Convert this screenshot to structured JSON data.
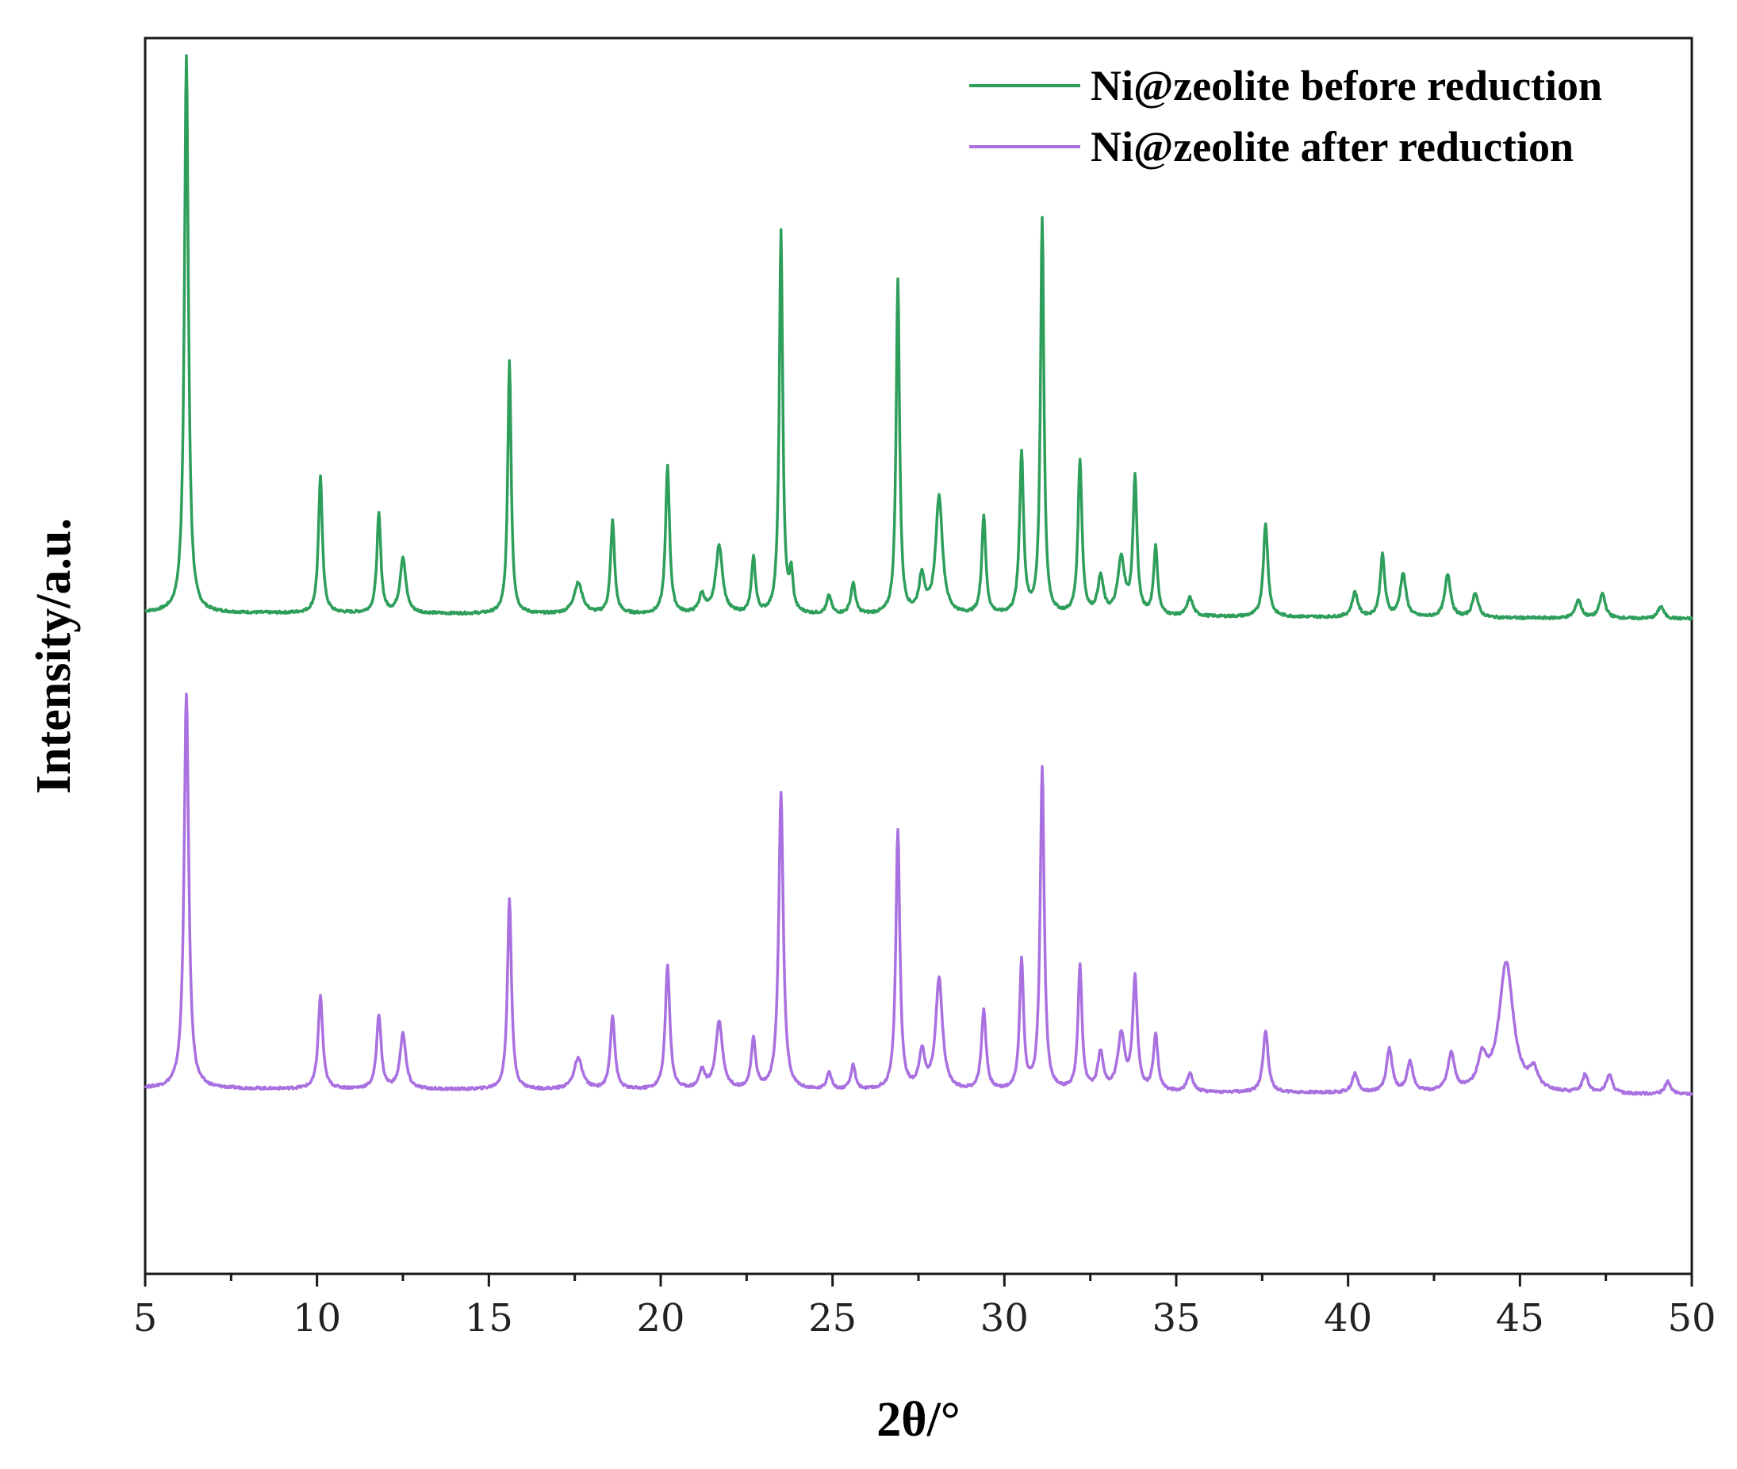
{
  "chart_data": {
    "type": "line",
    "title": "",
    "xlabel": "2θ/°",
    "ylabel": "Intensity/a.u.",
    "xlim": [
      5,
      50
    ],
    "ylim": [
      0,
      2
    ],
    "xticks": [
      5,
      10,
      15,
      20,
      25,
      30,
      35,
      40,
      45,
      50
    ],
    "xtick_labels": [
      "5",
      "10",
      "15",
      "20",
      "25",
      "30",
      "35",
      "40",
      "45",
      "50"
    ],
    "yticks_visible": false,
    "grid": false,
    "legend_position": "top-right",
    "series": [
      {
        "name": "Ni@zeolite before reduction",
        "color": "#2e9e5b",
        "baseline": 1.07,
        "baseline_drift": 0.01,
        "peaks": [
          [
            6.2,
            0.9,
            0.07
          ],
          [
            10.1,
            0.22,
            0.07
          ],
          [
            11.8,
            0.16,
            0.07
          ],
          [
            12.5,
            0.09,
            0.1
          ],
          [
            15.6,
            0.41,
            0.06
          ],
          [
            17.6,
            0.05,
            0.15
          ],
          [
            18.6,
            0.15,
            0.07
          ],
          [
            20.2,
            0.24,
            0.07
          ],
          [
            21.2,
            0.03,
            0.1
          ],
          [
            21.7,
            0.11,
            0.12
          ],
          [
            22.7,
            0.09,
            0.07
          ],
          [
            23.5,
            0.62,
            0.06
          ],
          [
            23.8,
            0.06,
            0.06
          ],
          [
            24.9,
            0.03,
            0.08
          ],
          [
            25.6,
            0.05,
            0.08
          ],
          [
            26.9,
            0.54,
            0.06
          ],
          [
            27.6,
            0.06,
            0.1
          ],
          [
            28.1,
            0.19,
            0.12
          ],
          [
            29.4,
            0.16,
            0.07
          ],
          [
            30.5,
            0.26,
            0.07
          ],
          [
            31.1,
            0.64,
            0.06
          ],
          [
            32.2,
            0.25,
            0.07
          ],
          [
            32.8,
            0.06,
            0.1
          ],
          [
            33.4,
            0.09,
            0.12
          ],
          [
            33.8,
            0.22,
            0.07
          ],
          [
            34.4,
            0.11,
            0.07
          ],
          [
            35.4,
            0.03,
            0.1
          ],
          [
            37.6,
            0.15,
            0.08
          ],
          [
            40.2,
            0.04,
            0.1
          ],
          [
            41.0,
            0.1,
            0.08
          ],
          [
            41.6,
            0.07,
            0.1
          ],
          [
            42.9,
            0.07,
            0.1
          ],
          [
            43.7,
            0.04,
            0.1
          ],
          [
            46.7,
            0.03,
            0.1
          ],
          [
            47.4,
            0.04,
            0.1
          ],
          [
            49.1,
            0.02,
            0.1
          ]
        ]
      },
      {
        "name": "Ni@zeolite after reduction",
        "color": "#a970e0",
        "baseline": 0.3,
        "baseline_drift": 0.01,
        "peaks": [
          [
            6.2,
            0.64,
            0.08
          ],
          [
            10.1,
            0.15,
            0.08
          ],
          [
            11.8,
            0.12,
            0.08
          ],
          [
            12.5,
            0.09,
            0.1
          ],
          [
            15.6,
            0.31,
            0.07
          ],
          [
            17.6,
            0.05,
            0.15
          ],
          [
            18.6,
            0.12,
            0.08
          ],
          [
            20.2,
            0.2,
            0.08
          ],
          [
            21.2,
            0.03,
            0.1
          ],
          [
            21.7,
            0.11,
            0.12
          ],
          [
            22.7,
            0.08,
            0.08
          ],
          [
            23.5,
            0.48,
            0.08
          ],
          [
            24.9,
            0.03,
            0.08
          ],
          [
            25.6,
            0.04,
            0.08
          ],
          [
            26.9,
            0.42,
            0.07
          ],
          [
            27.6,
            0.06,
            0.1
          ],
          [
            28.1,
            0.18,
            0.12
          ],
          [
            29.4,
            0.13,
            0.08
          ],
          [
            30.5,
            0.21,
            0.07
          ],
          [
            31.1,
            0.52,
            0.07
          ],
          [
            32.2,
            0.2,
            0.07
          ],
          [
            32.8,
            0.06,
            0.1
          ],
          [
            33.4,
            0.09,
            0.12
          ],
          [
            33.8,
            0.18,
            0.08
          ],
          [
            34.4,
            0.09,
            0.08
          ],
          [
            35.4,
            0.03,
            0.1
          ],
          [
            37.6,
            0.1,
            0.09
          ],
          [
            40.2,
            0.03,
            0.1
          ],
          [
            41.2,
            0.07,
            0.1
          ],
          [
            41.8,
            0.05,
            0.1
          ],
          [
            43.0,
            0.06,
            0.12
          ],
          [
            43.9,
            0.05,
            0.15
          ],
          [
            44.6,
            0.21,
            0.25
          ],
          [
            45.4,
            0.03,
            0.15
          ],
          [
            46.9,
            0.03,
            0.1
          ],
          [
            47.6,
            0.03,
            0.1
          ],
          [
            49.3,
            0.02,
            0.1
          ]
        ]
      }
    ]
  }
}
